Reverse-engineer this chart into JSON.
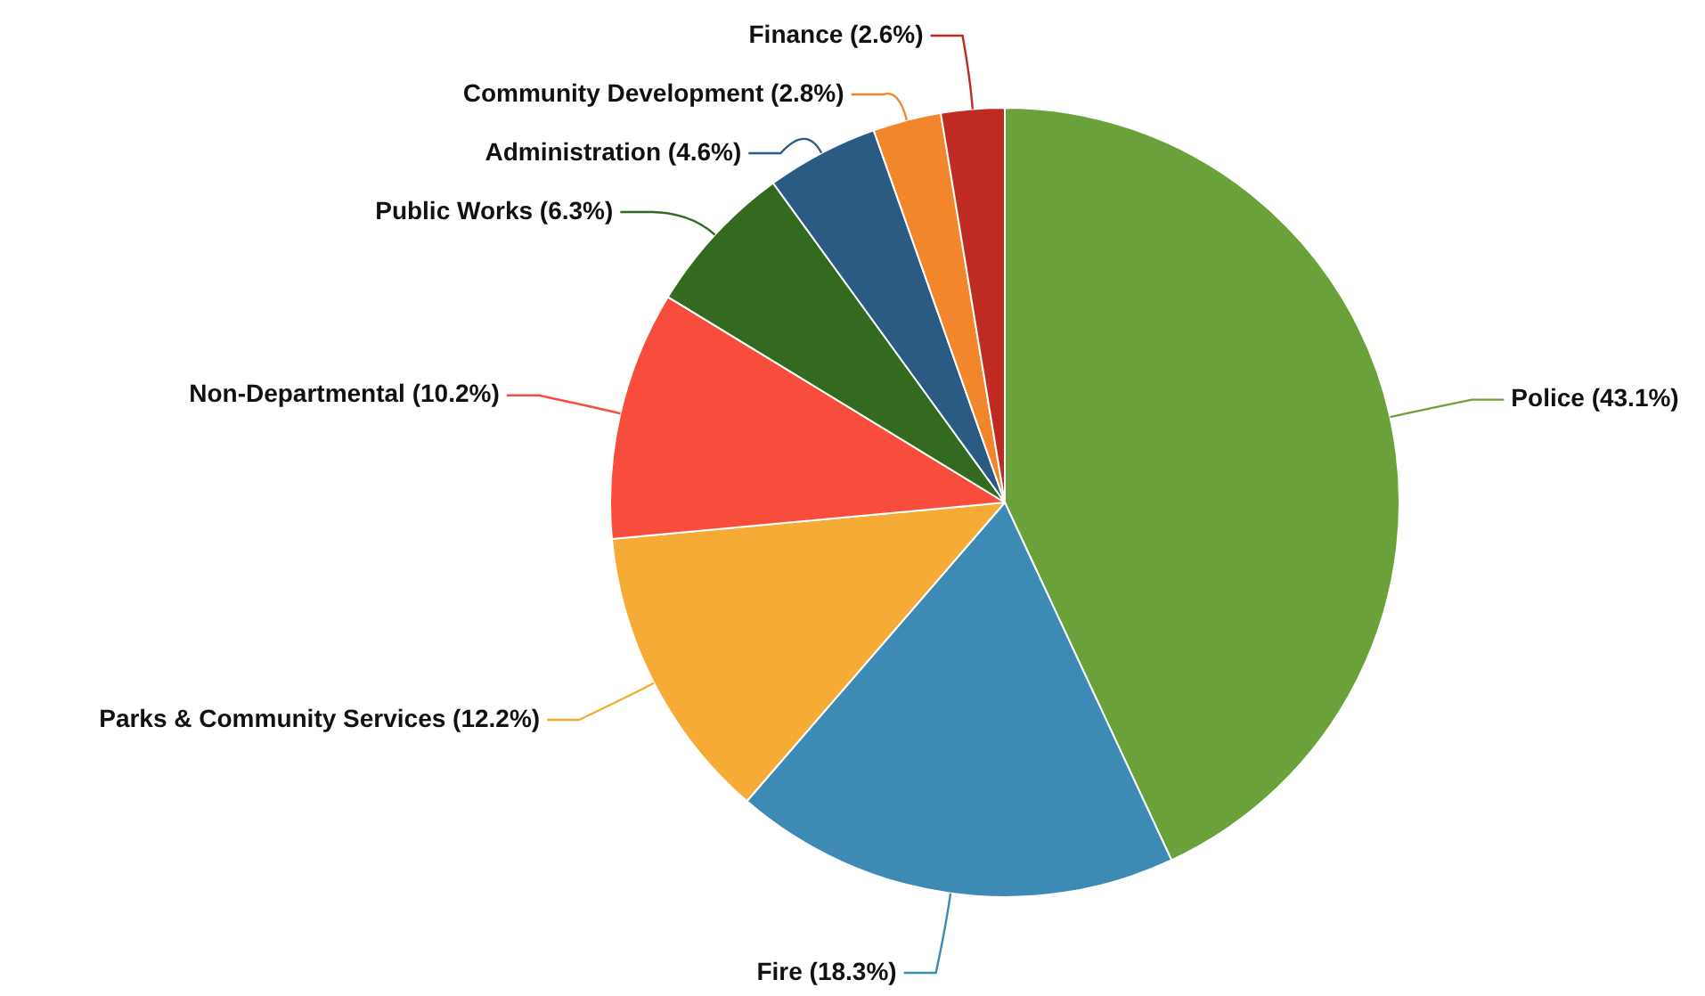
{
  "chart_data": {
    "type": "pie",
    "categories": [
      "Police (43.1%)",
      "Fire (18.3%)",
      "Parks & Community Services (12.2%)",
      "Non-Departmental (10.2%)",
      "Public Works (6.3%)",
      "Administration (4.6%)",
      "Community Development (2.8%)",
      "Finance (2.6%)"
    ],
    "values": [
      43.1,
      18.3,
      12.2,
      10.2,
      6.3,
      4.6,
      2.8,
      2.6
    ],
    "colors": [
      "#6aa13a",
      "#3d8ab5",
      "#f6ab36",
      "#f84c3c",
      "#336a20",
      "#2b5a82",
      "#f2862d",
      "#bf2a22"
    ],
    "legend": false
  }
}
